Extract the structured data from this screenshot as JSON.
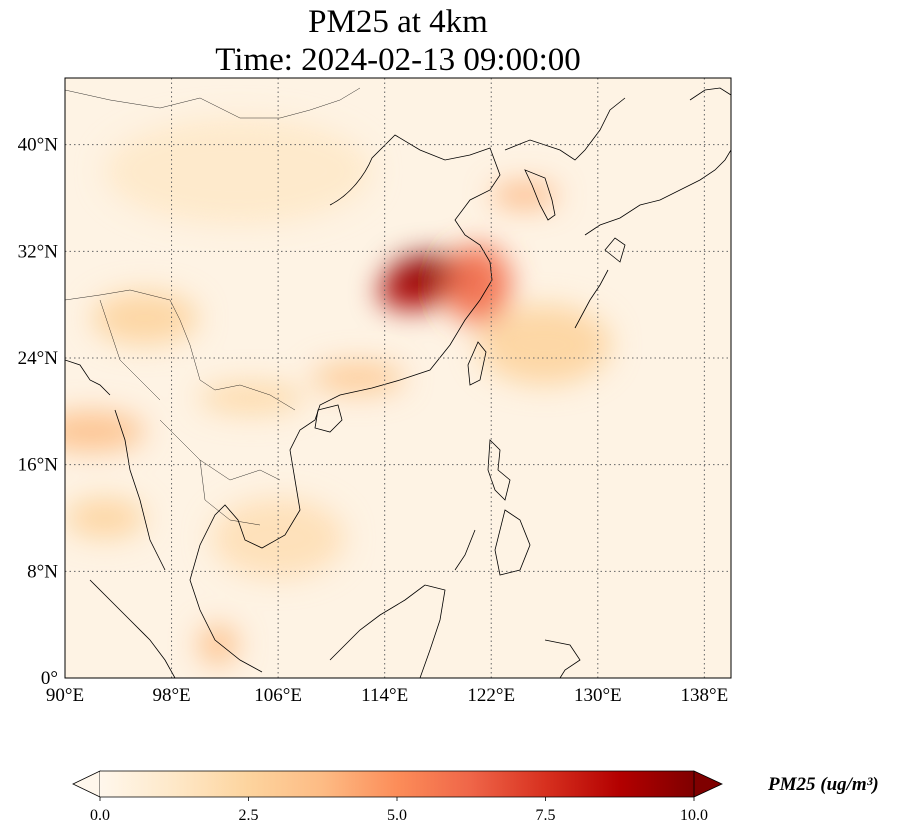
{
  "title_line1": "PM25 at 4km",
  "title_line2": "Time: 2024-02-13 09:00:00",
  "map": {
    "extent": {
      "lon_min": 90,
      "lon_max": 140,
      "lat_min": 0,
      "lat_max": 45
    },
    "lon_ticks": [
      {
        "value": 90,
        "label": "90°E"
      },
      {
        "value": 98,
        "label": "98°E"
      },
      {
        "value": 106,
        "label": "106°E"
      },
      {
        "value": 114,
        "label": "114°E"
      },
      {
        "value": 122,
        "label": "122°E"
      },
      {
        "value": 130,
        "label": "130°E"
      },
      {
        "value": 138,
        "label": "138°E"
      }
    ],
    "lat_ticks": [
      {
        "value": 0,
        "label": "0°"
      },
      {
        "value": 8,
        "label": "8°N"
      },
      {
        "value": 16,
        "label": "16°N"
      },
      {
        "value": 24,
        "label": "24°N"
      },
      {
        "value": 32,
        "label": "32°N"
      },
      {
        "value": 40,
        "label": "40°N"
      }
    ],
    "gridlines": true,
    "grid_style": "dotted gray"
  },
  "colorbar": {
    "label": "PM25 (ug/m³)",
    "min": 0,
    "max": 10,
    "ticks": [
      {
        "value": 0,
        "label": "0.0"
      },
      {
        "value": 2.5,
        "label": "2.5"
      },
      {
        "value": 5,
        "label": "5.0"
      },
      {
        "value": 7.5,
        "label": "7.5"
      },
      {
        "value": 10,
        "label": "10.0"
      }
    ],
    "extend": "both",
    "colormap": "OrRd",
    "colors": [
      "#fff7ec",
      "#fee8c8",
      "#fdd49e",
      "#fdbb84",
      "#fc8d59",
      "#ef6548",
      "#d7301f",
      "#b30000",
      "#7f0000"
    ]
  },
  "plumes": [
    {
      "lon": 117.5,
      "lat": 30.2,
      "value": 11,
      "slon": 3.2,
      "slat": 1.6
    },
    {
      "lon": 116.0,
      "lat": 29.0,
      "value": 9,
      "slon": 2.5,
      "slat": 1.4
    },
    {
      "lon": 121.0,
      "lat": 29.5,
      "value": 6,
      "slon": 2.5,
      "slat": 3.0
    },
    {
      "lon": 124.5,
      "lat": 36.2,
      "value": 4,
      "slon": 2.5,
      "slat": 0.9
    },
    {
      "lon": 112.0,
      "lat": 22.5,
      "value": 3,
      "slon": 3.5,
      "slat": 1.2
    },
    {
      "lon": 104.0,
      "lat": 21.0,
      "value": 2.2,
      "slon": 4.0,
      "slat": 1.2
    },
    {
      "lon": 92.0,
      "lat": 18.5,
      "value": 3.5,
      "slon": 4.0,
      "slat": 1.5
    },
    {
      "lon": 93.0,
      "lat": 12.0,
      "value": 2.5,
      "slon": 3.0,
      "slat": 1.5
    },
    {
      "lon": 101.5,
      "lat": 2.5,
      "value": 3.5,
      "slon": 1.5,
      "slat": 1.5
    },
    {
      "lon": 96.0,
      "lat": 27.0,
      "value": 2.5,
      "slon": 4.0,
      "slat": 2.0
    },
    {
      "lon": 126.0,
      "lat": 25.0,
      "value": 2.5,
      "slon": 5.0,
      "slat": 3.0
    },
    {
      "lon": 106.0,
      "lat": 10.5,
      "value": 1.8,
      "slon": 5.0,
      "slat": 3.0
    },
    {
      "lon": 103.0,
      "lat": 38.0,
      "value": 1.2,
      "slon": 10.0,
      "slat": 4.0
    }
  ]
}
